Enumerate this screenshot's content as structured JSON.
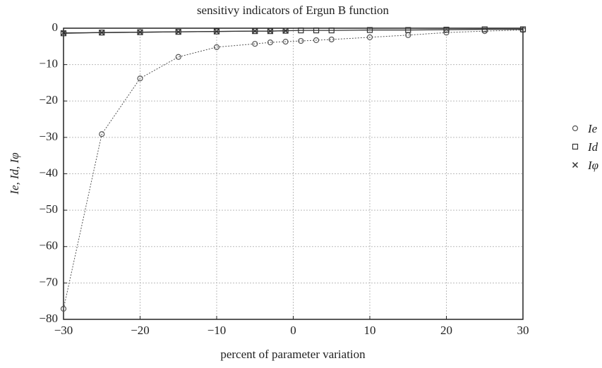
{
  "chart_data": {
    "type": "line",
    "title": "sensitivy indicators of Ergun B function",
    "x_label": "percent of parameter variation",
    "y_label": "Ie, Id, Iφ",
    "x": [
      -30,
      -25,
      -20,
      -15,
      -10,
      -5,
      -3,
      -1,
      1,
      3,
      5,
      10,
      15,
      20,
      25,
      30
    ],
    "series": [
      {
        "name": "Ie",
        "color": "#555555",
        "marker": "circle",
        "linestyle": "dotted",
        "values": [
          -77.1,
          -29.1,
          -13.8,
          -7.9,
          -5.2,
          -4.3,
          -3.9,
          -3.7,
          -3.5,
          -3.3,
          -3.1,
          -2.5,
          -1.9,
          -1.2,
          -0.8,
          -0.5
        ]
      },
      {
        "name": "Id",
        "color": "#333333",
        "marker": "square",
        "linestyle": "solid",
        "values": [
          -1.4,
          -1.2,
          -1.1,
          -1.0,
          -0.9,
          -0.8,
          -0.8,
          -0.7,
          -0.6,
          -0.6,
          -0.6,
          -0.5,
          -0.5,
          -0.4,
          -0.3,
          -0.3
        ]
      },
      {
        "name": "Iφ",
        "color": "#333333",
        "marker": "x",
        "linestyle": "solid",
        "values": [
          -1.3,
          -1.2,
          -1.1,
          -1.0,
          -0.9,
          -0.8,
          -0.8,
          -0.7,
          null,
          null,
          null,
          null,
          null,
          null,
          null,
          null
        ]
      }
    ],
    "xlim": [
      -30,
      30
    ],
    "ylim": [
      -80,
      0
    ],
    "xticks": [
      {
        "value": -30,
        "label": "−30"
      },
      {
        "value": -20,
        "label": "−20"
      },
      {
        "value": -10,
        "label": "−10"
      },
      0,
      10,
      20,
      30
    ],
    "yticks": [
      0,
      {
        "value": -10,
        "label": "−10"
      },
      {
        "value": -20,
        "label": "−20"
      },
      {
        "value": -30,
        "label": "−30"
      },
      {
        "value": -40,
        "label": "−40"
      },
      {
        "value": -50,
        "label": "−50"
      },
      {
        "value": -60,
        "label": "−60"
      },
      {
        "value": -70,
        "label": "−70"
      },
      {
        "value": -80,
        "label": "−80"
      }
    ],
    "grid": true,
    "legend": "right"
  }
}
